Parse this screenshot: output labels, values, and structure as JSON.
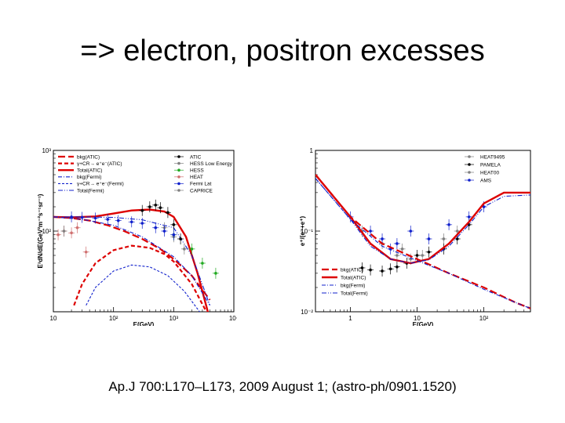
{
  "slide": {
    "title": "=> electron, positron excesses",
    "citation": "Ap.J 700:L170–L173, 2009 August 1; (astro-ph/0901.1520)"
  },
  "chart_data": [
    {
      "type": "line",
      "title": "",
      "xlabel": "E(GeV)",
      "ylabel": "E³dN/dE(GeV²m⁻²s⁻¹sr⁻¹)",
      "xscale": "log",
      "yscale": "log",
      "xlim": [
        10,
        10000
      ],
      "ylim": [
        10,
        1000
      ],
      "xticks": [
        {
          "v": 10,
          "label": "10"
        },
        {
          "v": 100,
          "label": "10²"
        },
        {
          "v": 1000,
          "label": "10³"
        },
        {
          "v": 10000,
          "label": "10⁴"
        }
      ],
      "yticks": [
        {
          "v": 1000,
          "label": "10³"
        },
        {
          "v": 100,
          "label": "10²"
        }
      ],
      "legend_position": "top",
      "series": [
        {
          "name": "bkg(ATIC)",
          "style": "red-longdash",
          "color": "#dd0000",
          "x": [
            10,
            20,
            40,
            80,
            150,
            300,
            600,
            1000,
            2000,
            4000
          ],
          "y": [
            150,
            145,
            135,
            118,
            100,
            80,
            60,
            45,
            28,
            14
          ]
        },
        {
          "name": "γ+CR→ e⁺e⁻(ATIC)",
          "style": "red-dash",
          "color": "#dd0000",
          "x": [
            22,
            30,
            50,
            100,
            200,
            400,
            700,
            1000,
            2000,
            3500
          ],
          "y": [
            12,
            22,
            40,
            58,
            66,
            62,
            52,
            42,
            22,
            10
          ]
        },
        {
          "name": "Total(ATIC)",
          "style": "red-solid",
          "color": "#dd0000",
          "x": [
            10,
            20,
            50,
            100,
            200,
            400,
            700,
            1000,
            1600,
            2500,
            4000
          ],
          "y": [
            150,
            148,
            152,
            165,
            180,
            185,
            175,
            150,
            85,
            30,
            8
          ]
        },
        {
          "name": "bkg(Fermi)",
          "style": "blue-dashdot",
          "color": "#1020cc",
          "x": [
            10,
            30,
            100,
            300,
            1000,
            2000,
            4000
          ],
          "y": [
            150,
            140,
            118,
            85,
            48,
            28,
            12
          ]
        },
        {
          "name": "γ+CR→ e⁺e⁻(Fermi)",
          "style": "blue-dash",
          "color": "#1020cc",
          "x": [
            35,
            50,
            100,
            200,
            400,
            800,
            1500,
            3000
          ],
          "y": [
            12,
            20,
            32,
            38,
            36,
            28,
            18,
            9
          ]
        },
        {
          "name": "Total(Fermi)",
          "style": "blue-dashdotdot",
          "color": "#1020cc",
          "x": [
            10,
            30,
            100,
            300,
            1000,
            2000,
            4000
          ],
          "y": [
            150,
            150,
            148,
            138,
            110,
            50,
            12
          ]
        },
        {
          "name": "ATIC",
          "style": "markers",
          "color": "#000000",
          "x": [
            300,
            400,
            500,
            600,
            800,
            1000,
            1300
          ],
          "y": [
            180,
            200,
            210,
            195,
            170,
            120,
            80
          ]
        },
        {
          "name": "HESS Low Energy",
          "style": "markers",
          "color": "#808080",
          "x": [
            700,
            1000,
            1500
          ],
          "y": [
            110,
            85,
            60
          ]
        },
        {
          "name": "HESS",
          "style": "markers",
          "color": "#22aa22",
          "x": [
            1000,
            2000,
            3000,
            5000
          ],
          "y": [
            90,
            60,
            40,
            30
          ]
        },
        {
          "name": "HEAT",
          "style": "markers",
          "color": "#d07070",
          "x": [
            12,
            15,
            20,
            25,
            35
          ],
          "y": [
            90,
            100,
            95,
            110,
            55
          ]
        },
        {
          "name": "Fermi Lat",
          "style": "markers",
          "color": "#1020cc",
          "x": [
            20,
            30,
            50,
            80,
            120,
            200,
            300,
            500,
            700,
            1000
          ],
          "y": [
            150,
            148,
            145,
            140,
            135,
            130,
            125,
            110,
            100,
            90
          ]
        },
        {
          "name": "CAPRICE",
          "style": "markers",
          "color": "#808080",
          "x": [
            8,
            15
          ],
          "y": [
            150,
            100
          ]
        }
      ]
    },
    {
      "type": "line",
      "title": "",
      "xlabel": "E(GeV)",
      "ylabel": "e⁺/(e⁻+e⁺)",
      "xscale": "log",
      "yscale": "log",
      "xlim": [
        0.3,
        500
      ],
      "ylim": [
        0.01,
        1
      ],
      "xticks": [
        {
          "v": 1,
          "label": "1"
        },
        {
          "v": 10,
          "label": "10"
        },
        {
          "v": 100,
          "label": "10²"
        }
      ],
      "yticks": [
        {
          "v": 1,
          "label": "1"
        },
        {
          "v": 0.1,
          "label": "10⁻¹"
        },
        {
          "v": 0.01,
          "label": "10⁻²"
        }
      ],
      "legend_position": "top-right and bottom-left",
      "series": [
        {
          "name": "HEAT9495",
          "style": "markers",
          "color": "#808080",
          "x": [
            1.5,
            3,
            6,
            12,
            25,
            40
          ],
          "y": [
            0.1,
            0.07,
            0.06,
            0.05,
            0.08,
            0.1
          ]
        },
        {
          "name": "PAMELA",
          "style": "markers",
          "color": "#000000",
          "x": [
            1.5,
            2,
            3,
            4,
            5,
            7,
            10,
            15,
            25,
            40,
            60
          ],
          "y": [
            0.035,
            0.033,
            0.032,
            0.034,
            0.036,
            0.04,
            0.05,
            0.055,
            0.06,
            0.08,
            0.12
          ]
        },
        {
          "name": "HEAT00",
          "style": "markers",
          "color": "#808080",
          "x": [
            5,
            8
          ],
          "y": [
            0.05,
            0.045
          ]
        },
        {
          "name": "AMS",
          "style": "markers",
          "color": "#1020cc",
          "x": [
            1,
            2,
            3,
            4,
            5,
            8,
            15,
            30,
            60,
            100
          ],
          "y": [
            0.15,
            0.1,
            0.08,
            0.06,
            0.07,
            0.1,
            0.08,
            0.12,
            0.15,
            0.2
          ]
        },
        {
          "name": "bkg(ATIC)",
          "style": "red-longdash",
          "color": "#dd0000",
          "x": [
            0.3,
            1,
            3,
            10,
            30,
            100,
            300,
            500
          ],
          "y": [
            0.5,
            0.15,
            0.07,
            0.045,
            0.03,
            0.02,
            0.013,
            0.011
          ]
        },
        {
          "name": "Total(ATIC)",
          "style": "red-solid",
          "color": "#dd0000",
          "x": [
            0.3,
            1,
            2,
            4,
            8,
            15,
            30,
            60,
            100,
            200,
            500
          ],
          "y": [
            0.5,
            0.15,
            0.07,
            0.045,
            0.04,
            0.045,
            0.07,
            0.13,
            0.22,
            0.3,
            0.3
          ]
        },
        {
          "name": "bkg(Fermi)",
          "style": "blue-dashdot",
          "color": "#1020cc",
          "x": [
            0.3,
            1,
            3,
            10,
            30,
            100,
            300,
            500
          ],
          "y": [
            0.45,
            0.14,
            0.065,
            0.043,
            0.03,
            0.019,
            0.013,
            0.011
          ]
        },
        {
          "name": "Total(Fermi)",
          "style": "blue-dashdotdot",
          "color": "#1020cc",
          "x": [
            0.3,
            1,
            2,
            4,
            8,
            15,
            30,
            60,
            100,
            200,
            500
          ],
          "y": [
            0.45,
            0.14,
            0.065,
            0.045,
            0.04,
            0.044,
            0.065,
            0.12,
            0.2,
            0.27,
            0.28
          ]
        }
      ]
    }
  ]
}
